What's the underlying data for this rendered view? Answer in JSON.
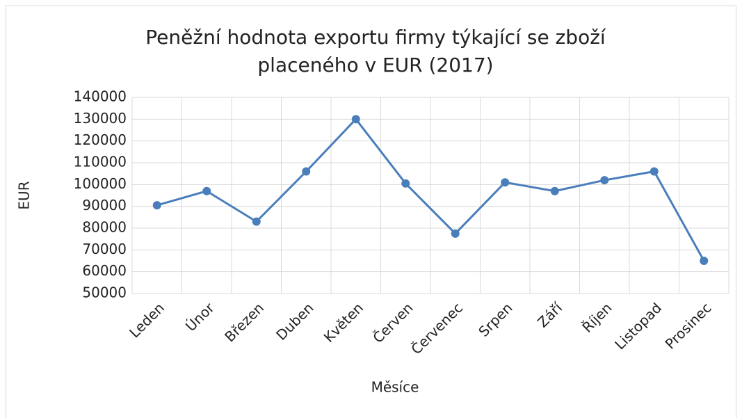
{
  "chart_data": {
    "type": "line",
    "title": "Peněžní hodnota exportu firmy týkající se zboží placeného v EUR (2017)",
    "x_label": "Měsíce",
    "y_label": "EUR",
    "categories": [
      "Leden",
      "Únor",
      "Březen",
      "Duben",
      "Květen",
      "Červen",
      "Červenec",
      "Srpen",
      "Září",
      "Říjen",
      "Listopad",
      "Prosinec"
    ],
    "series": [
      {
        "name": "EUR",
        "color": "#4a7ebb",
        "values": [
          90500,
          97000,
          83000,
          106000,
          130000,
          100500,
          77500,
          101000,
          97000,
          102000,
          106000,
          65000
        ]
      }
    ],
    "ylim": [
      50000,
      140000
    ],
    "yticks": [
      50000,
      60000,
      70000,
      80000,
      90000,
      100000,
      110000,
      120000,
      130000,
      140000
    ],
    "grid": true
  }
}
